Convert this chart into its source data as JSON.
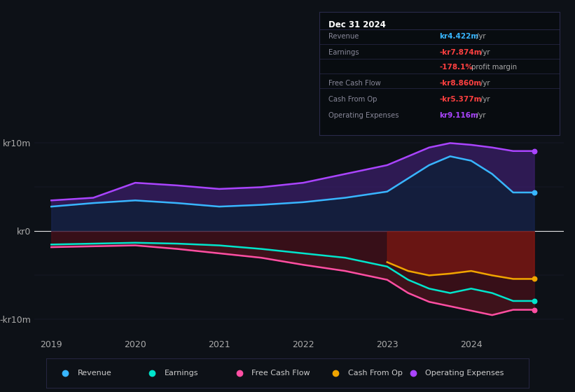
{
  "bg_color": "#0d1117",
  "years": [
    2019,
    2019.5,
    2020,
    2020.5,
    2021,
    2021.5,
    2022,
    2022.5,
    2023,
    2023.25,
    2023.5,
    2023.75,
    2024,
    2024.25,
    2024.5,
    2024.75
  ],
  "revenue": [
    2.8,
    3.2,
    3.5,
    3.2,
    2.8,
    3.0,
    3.3,
    3.8,
    4.5,
    6.0,
    7.5,
    8.5,
    8.0,
    6.5,
    4.4,
    4.4
  ],
  "operating_expenses": [
    3.5,
    3.8,
    5.5,
    5.2,
    4.8,
    5.0,
    5.5,
    6.5,
    7.5,
    8.5,
    9.5,
    10.0,
    9.8,
    9.5,
    9.1,
    9.1
  ],
  "earnings": [
    -1.5,
    -1.4,
    -1.3,
    -1.4,
    -1.6,
    -2.0,
    -2.5,
    -3.0,
    -4.0,
    -5.5,
    -6.5,
    -7.0,
    -6.5,
    -7.0,
    -7.9,
    -7.9
  ],
  "free_cash_flow": [
    -1.8,
    -1.7,
    -1.6,
    -2.0,
    -2.5,
    -3.0,
    -3.8,
    -4.5,
    -5.5,
    -7.0,
    -8.0,
    -8.5,
    -9.0,
    -9.5,
    -8.9,
    -8.9
  ],
  "cash_from_op": [
    0,
    0,
    0,
    0,
    0,
    0,
    0,
    0,
    -3.5,
    -4.5,
    -5.0,
    -4.8,
    -4.5,
    -5.0,
    -5.4,
    -5.4
  ],
  "revenue_color": "#38b6ff",
  "earnings_color": "#00e5cc",
  "free_cash_flow_color": "#ff4fa3",
  "cash_from_op_color": "#f0a500",
  "op_expenses_color": "#aa44ff",
  "info_box_title": "Dec 31 2024",
  "info_rows": [
    {
      "label": "Revenue",
      "value": "kr4.422m",
      "value_color": "#38b6ff",
      "suffix": " /yr"
    },
    {
      "label": "Earnings",
      "value": "-kr7.874m",
      "value_color": "#ff4040",
      "suffix": " /yr"
    },
    {
      "label": "",
      "value": "-178.1%",
      "value_color": "#ff4040",
      "suffix": " profit margin"
    },
    {
      "label": "Free Cash Flow",
      "value": "-kr8.860m",
      "value_color": "#ff4040",
      "suffix": " /yr"
    },
    {
      "label": "Cash From Op",
      "value": "-kr5.377m",
      "value_color": "#ff4040",
      "suffix": " /yr"
    },
    {
      "label": "Operating Expenses",
      "value": "kr9.116m",
      "value_color": "#aa44ff",
      "suffix": " /yr"
    }
  ],
  "legend_items": [
    {
      "label": "Revenue",
      "color": "#38b6ff"
    },
    {
      "label": "Earnings",
      "color": "#00e5cc"
    },
    {
      "label": "Free Cash Flow",
      "color": "#ff4fa3"
    },
    {
      "label": "Cash From Op",
      "color": "#f0a500"
    },
    {
      "label": "Operating Expenses",
      "color": "#aa44ff"
    }
  ]
}
